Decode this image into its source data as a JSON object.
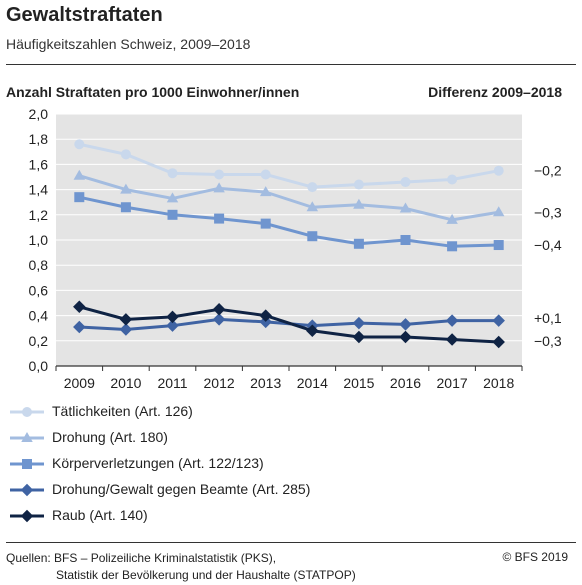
{
  "title": "Gewaltstraftaten",
  "subtitle": "Häufigkeitszahlen Schweiz, 2009–2018",
  "footer": {
    "sources_line1": "Quellen: BFS – Polizeiliche Kriminalstatistik (PKS),",
    "sources_line2": "Statistik der Bevölkerung und der Haushalte (STATPOP)",
    "copyright": "© BFS 2019"
  },
  "chart_data": {
    "type": "line",
    "ylabel": "Anzahl Straftaten pro 1000 Einwohner/innen",
    "difference_label": "Differenz 2009–2018",
    "x": [
      "2009",
      "2010",
      "2011",
      "2012",
      "2013",
      "2014",
      "2015",
      "2016",
      "2017",
      "2018"
    ],
    "ylim": [
      0,
      2.0
    ],
    "yticks": [
      "0,0",
      "0,2",
      "0,4",
      "0,6",
      "0,8",
      "1,0",
      "1,2",
      "1,4",
      "1,6",
      "1,8",
      "2,0"
    ],
    "grid": true,
    "legend_position": "bottom",
    "series": [
      {
        "name": "Tätlichkeiten (Art. 126)",
        "color": "#c9d8ec",
        "marker": "circle",
        "values": [
          1.76,
          1.68,
          1.53,
          1.52,
          1.52,
          1.42,
          1.44,
          1.46,
          1.48,
          1.55
        ],
        "difference": "−0,2"
      },
      {
        "name": "Drohung (Art. 180)",
        "color": "#a3bce0",
        "marker": "triangle",
        "values": [
          1.51,
          1.4,
          1.33,
          1.41,
          1.38,
          1.26,
          1.28,
          1.25,
          1.16,
          1.22
        ],
        "difference": "−0,3"
      },
      {
        "name": "Körperverletzungen (Art. 122/123)",
        "color": "#6f95cf",
        "marker": "square",
        "values": [
          1.34,
          1.26,
          1.2,
          1.17,
          1.13,
          1.03,
          0.97,
          1.0,
          0.95,
          0.96
        ],
        "difference": "−0,4"
      },
      {
        "name": "Drohung/Gewalt gegen Beamte (Art. 285)",
        "color": "#3f63a3",
        "marker": "diamond",
        "values": [
          0.31,
          0.29,
          0.32,
          0.37,
          0.35,
          0.32,
          0.34,
          0.33,
          0.36,
          0.36
        ],
        "difference": "+0,1"
      },
      {
        "name": "Raub (Art. 140)",
        "color": "#0f2344",
        "marker": "diamond",
        "values": [
          0.47,
          0.37,
          0.39,
          0.45,
          0.4,
          0.28,
          0.23,
          0.23,
          0.21,
          0.19
        ],
        "difference": "−0,3"
      }
    ]
  }
}
